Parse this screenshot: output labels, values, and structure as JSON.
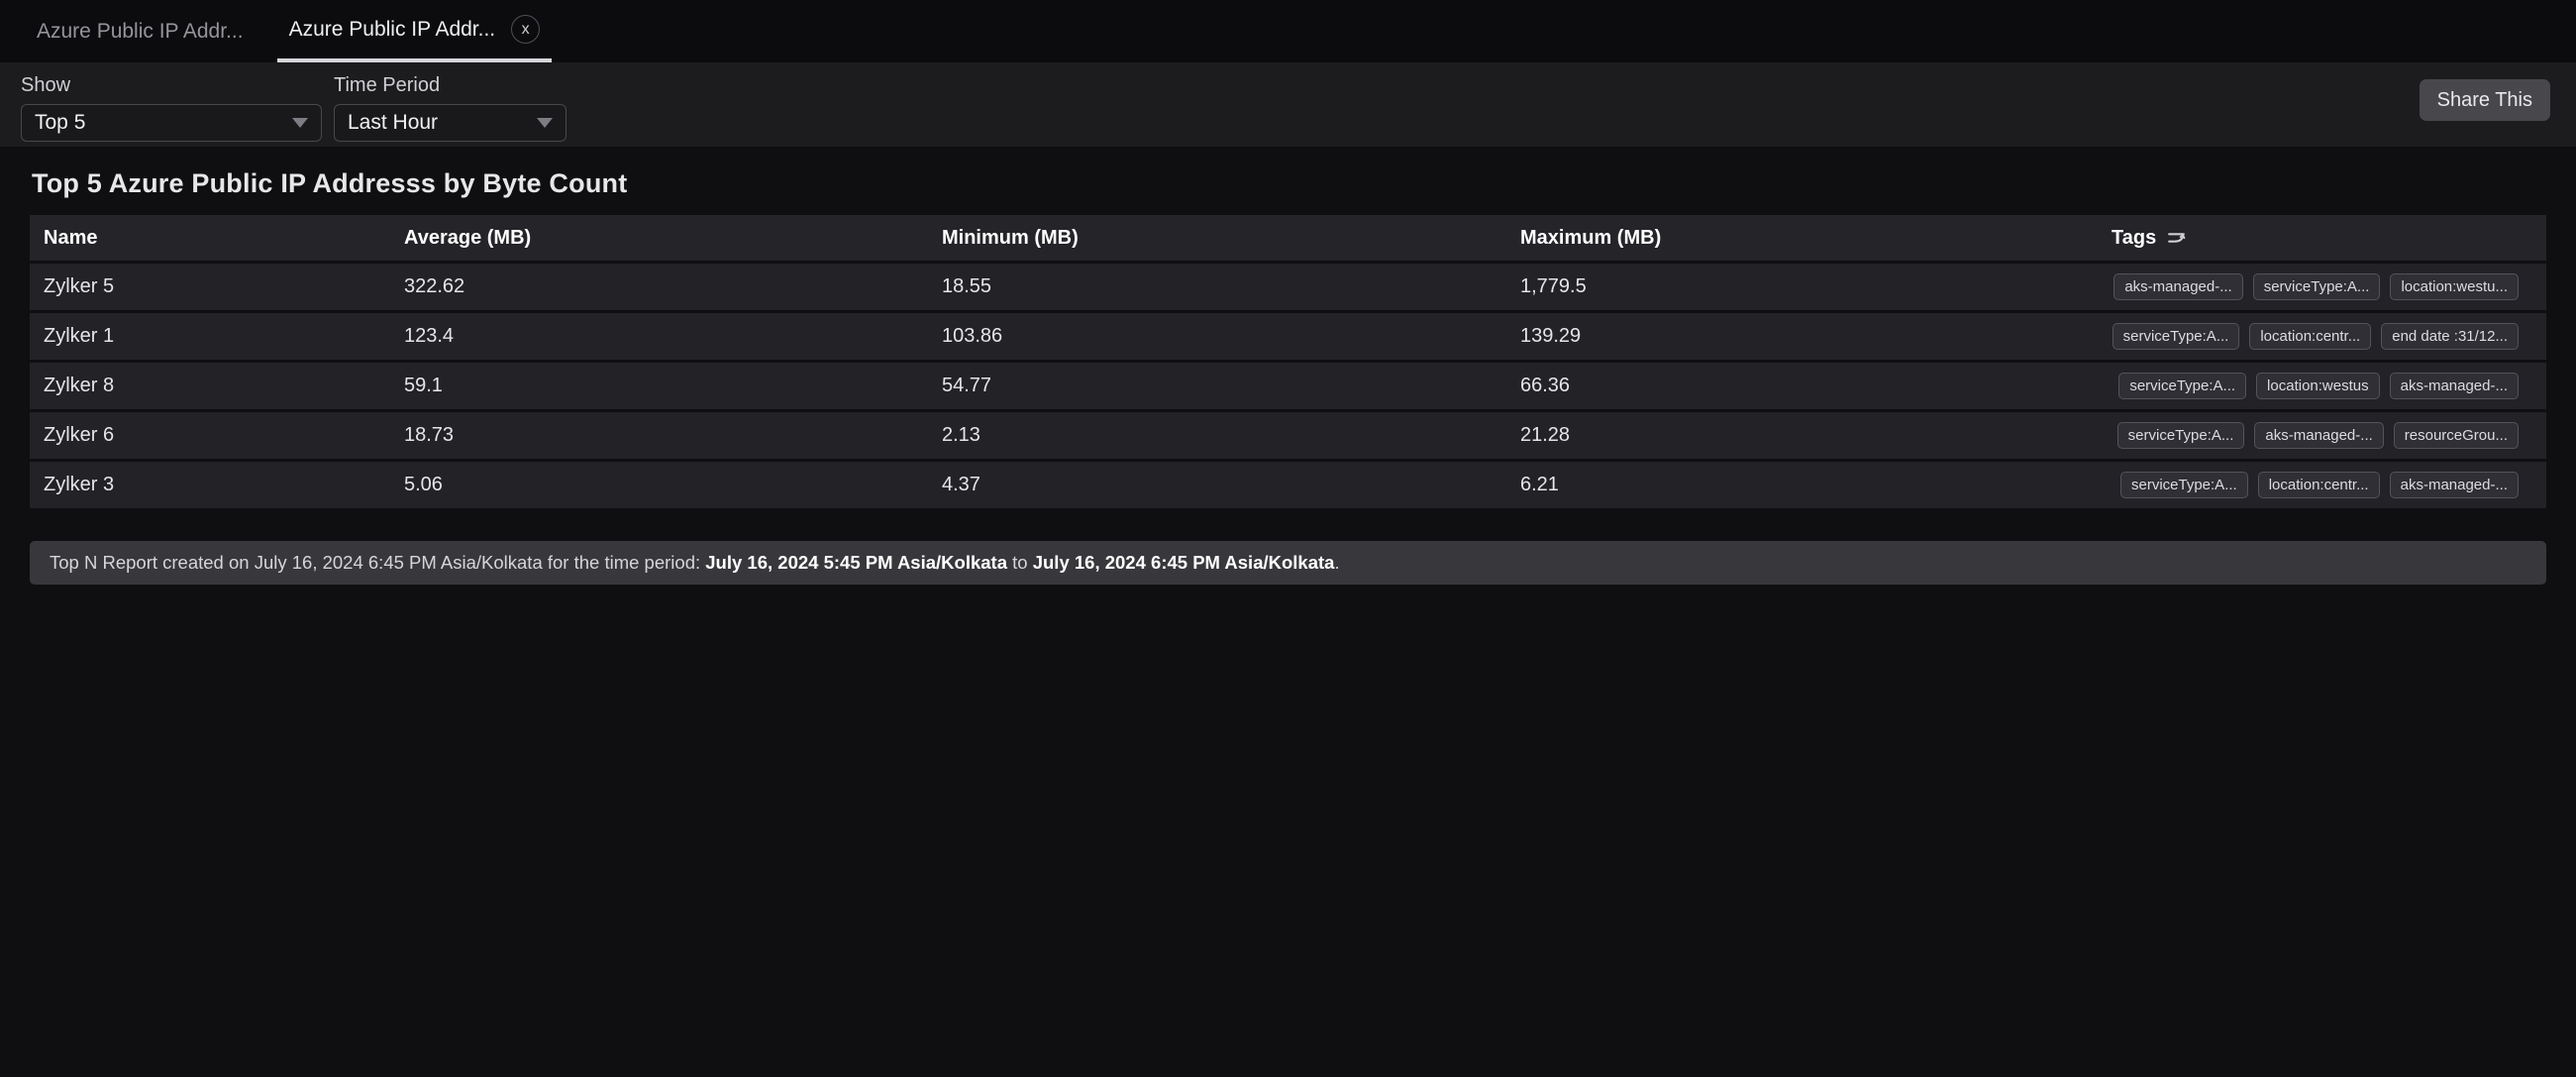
{
  "tabs": [
    {
      "label": "Azure Public IP Addr...",
      "active": false
    },
    {
      "label": "Azure Public IP Addr...",
      "active": true
    }
  ],
  "icons": {
    "close": "x",
    "caret": "caret-down",
    "tags_filter": "tags-filter"
  },
  "filters": {
    "show_label": "Show",
    "show_value": "Top 5",
    "time_period_label": "Time Period",
    "time_period_value": "Last Hour",
    "share_button": "Share This"
  },
  "report": {
    "title": "Top 5 Azure Public IP Addresss by Byte Count",
    "table": {
      "columns": [
        "Name",
        "Average (MB)",
        "Minimum (MB)",
        "Maximum (MB)",
        "Tags"
      ],
      "rows": [
        {
          "name": "Zylker 5",
          "average": "322.62",
          "minimum": "18.55",
          "maximum": "1,779.5",
          "tags": [
            "aks-managed-...",
            "serviceType:A...",
            "location:westu..."
          ]
        },
        {
          "name": "Zylker 1",
          "average": "123.4",
          "minimum": "103.86",
          "maximum": "139.29",
          "tags": [
            "serviceType:A...",
            "location:centr...",
            "end date :31/12..."
          ]
        },
        {
          "name": "Zylker 8",
          "average": "59.1",
          "minimum": "54.77",
          "maximum": "66.36",
          "tags": [
            "serviceType:A...",
            "location:westus",
            "aks-managed-..."
          ]
        },
        {
          "name": "Zylker 6",
          "average": "18.73",
          "minimum": "2.13",
          "maximum": "21.28",
          "tags": [
            "serviceType:A...",
            "aks-managed-...",
            "resourceGrou..."
          ]
        },
        {
          "name": "Zylker 3",
          "average": "5.06",
          "minimum": "4.37",
          "maximum": "6.21",
          "tags": [
            "serviceType:A...",
            "location:centr...",
            "aks-managed-..."
          ]
        }
      ]
    },
    "footer": {
      "prefix": "Top N Report created on July 16, 2024 6:45 PM Asia/Kolkata for the time period: ",
      "period_start": "July 16, 2024 5:45 PM Asia/Kolkata",
      "middle": " to ",
      "period_end": "July 16, 2024 6:45 PM Asia/Kolkata",
      "suffix": "."
    }
  },
  "colors": {
    "page_bg": "#0f0f12",
    "filter_bar_bg": "#1c1c1f",
    "table_header_bg": "#242429",
    "row_bg": "#222227",
    "footer_bg": "#38383c",
    "active_tab_underline": "#d6d6da",
    "tag_chip_bg": "#2f2f35",
    "tag_chip_border": "#53535a"
  }
}
